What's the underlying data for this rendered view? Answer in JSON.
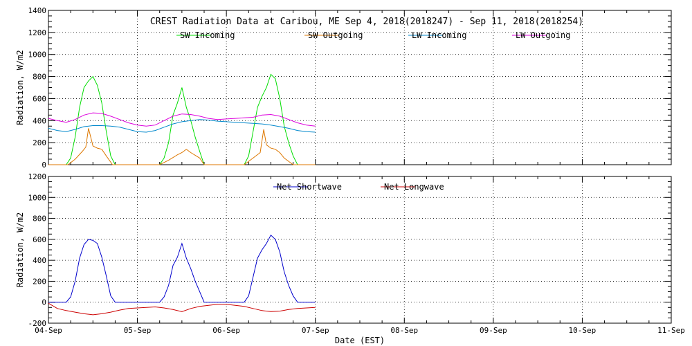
{
  "title": "CREST Radiation Data at Caribou, ME   Sep  4, 2018(2018247) - Sep 11, 2018(2018254)",
  "xlabel": "Date (EST)",
  "x_ticks": [
    "04-Sep",
    "05-Sep",
    "06-Sep",
    "07-Sep",
    "08-Sep",
    "09-Sep",
    "10-Sep",
    "11-Sep"
  ],
  "colors": {
    "sw_in": "#00dd00",
    "sw_out": "#dd7700",
    "lw_in": "#0088cc",
    "lw_out": "#dd00dd",
    "net_sw": "#0000cc",
    "net_lw": "#cc0000"
  },
  "chart_data": [
    {
      "type": "line",
      "ylabel": "Radiation, W/m2",
      "ylim": [
        0,
        1400
      ],
      "y_ticks": [
        0,
        200,
        400,
        600,
        800,
        1000,
        1200,
        1400
      ],
      "xlim": [
        0,
        7
      ],
      "x_unit": "days since 04-Sep 00:00 EST",
      "grid": true,
      "legend": "top",
      "series": [
        {
          "name": "SW Incoming",
          "color_key": "sw_in",
          "x": [
            0,
            0.2,
            0.25,
            0.3,
            0.35,
            0.4,
            0.45,
            0.5,
            0.55,
            0.6,
            0.65,
            0.7,
            0.75,
            1.25,
            1.3,
            1.35,
            1.4,
            1.45,
            1.5,
            1.55,
            1.6,
            1.65,
            1.7,
            1.75,
            2.2,
            2.25,
            2.3,
            2.35,
            2.4,
            2.45,
            2.5,
            2.55,
            2.6,
            2.65,
            2.7,
            2.75,
            2.8,
            3.0
          ],
          "values": [
            0,
            0,
            60,
            250,
            520,
            700,
            760,
            800,
            720,
            560,
            300,
            80,
            0,
            0,
            60,
            200,
            450,
            560,
            700,
            520,
            400,
            250,
            120,
            0,
            0,
            80,
            300,
            520,
            620,
            700,
            820,
            780,
            600,
            350,
            200,
            80,
            0,
            0
          ]
        },
        {
          "name": "SW Outgoing",
          "color_key": "sw_out",
          "x": [
            0,
            0.22,
            0.3,
            0.38,
            0.42,
            0.45,
            0.5,
            0.55,
            0.6,
            0.65,
            0.72,
            1.25,
            1.35,
            1.45,
            1.5,
            1.55,
            1.6,
            1.7,
            1.75,
            2.2,
            2.3,
            2.38,
            2.42,
            2.45,
            2.5,
            2.55,
            2.6,
            2.65,
            2.75,
            3.0
          ],
          "values": [
            0,
            0,
            50,
            120,
            160,
            330,
            170,
            150,
            140,
            80,
            0,
            0,
            40,
            90,
            110,
            140,
            110,
            60,
            0,
            0,
            60,
            110,
            320,
            180,
            150,
            140,
            110,
            60,
            0,
            0
          ]
        },
        {
          "name": "LW Incoming",
          "color_key": "lw_in",
          "x": [
            0,
            0.1,
            0.2,
            0.3,
            0.4,
            0.5,
            0.6,
            0.7,
            0.8,
            0.9,
            1.0,
            1.1,
            1.2,
            1.3,
            1.4,
            1.5,
            1.6,
            1.7,
            1.8,
            1.9,
            2.0,
            2.1,
            2.2,
            2.3,
            2.4,
            2.5,
            2.6,
            2.7,
            2.8,
            2.9,
            3.0
          ],
          "values": [
            330,
            310,
            300,
            320,
            345,
            355,
            355,
            350,
            340,
            320,
            300,
            295,
            310,
            340,
            370,
            390,
            400,
            410,
            405,
            395,
            390,
            385,
            380,
            375,
            370,
            360,
            345,
            330,
            310,
            300,
            295
          ]
        },
        {
          "name": "LW Outgoing",
          "color_key": "lw_out",
          "x": [
            0,
            0.1,
            0.2,
            0.3,
            0.4,
            0.5,
            0.6,
            0.7,
            0.8,
            0.9,
            1.0,
            1.1,
            1.2,
            1.3,
            1.4,
            1.5,
            1.6,
            1.7,
            1.8,
            1.9,
            2.0,
            2.1,
            2.2,
            2.3,
            2.4,
            2.5,
            2.6,
            2.7,
            2.8,
            2.9,
            3.0
          ],
          "values": [
            420,
            400,
            385,
            410,
            450,
            470,
            465,
            440,
            410,
            380,
            360,
            350,
            360,
            400,
            440,
            460,
            455,
            440,
            420,
            410,
            415,
            420,
            425,
            430,
            450,
            455,
            440,
            410,
            380,
            360,
            350
          ]
        }
      ]
    },
    {
      "type": "line",
      "ylabel": "Radiation, W/m2",
      "ylim": [
        -200,
        1200
      ],
      "y_ticks": [
        -200,
        0,
        200,
        400,
        600,
        800,
        1000,
        1200
      ],
      "xlim": [
        0,
        7
      ],
      "x_unit": "days since 04-Sep 00:00 EST",
      "grid": true,
      "legend": "top",
      "series": [
        {
          "name": "Net Shortwave",
          "color_key": "net_sw",
          "x": [
            0,
            0.2,
            0.25,
            0.3,
            0.35,
            0.4,
            0.45,
            0.5,
            0.55,
            0.6,
            0.65,
            0.7,
            0.75,
            1.25,
            1.3,
            1.35,
            1.4,
            1.45,
            1.5,
            1.55,
            1.6,
            1.65,
            1.7,
            1.75,
            2.2,
            2.25,
            2.3,
            2.35,
            2.4,
            2.45,
            2.5,
            2.55,
            2.6,
            2.65,
            2.7,
            2.75,
            2.8,
            3.0
          ],
          "values": [
            0,
            0,
            50,
            200,
            420,
            550,
            600,
            590,
            560,
            430,
            250,
            60,
            0,
            0,
            50,
            160,
            350,
            430,
            560,
            420,
            320,
            200,
            100,
            0,
            0,
            60,
            240,
            420,
            500,
            560,
            640,
            600,
            480,
            290,
            160,
            60,
            0,
            0
          ]
        },
        {
          "name": "Net Longwave",
          "color_key": "net_lw",
          "x": [
            0,
            0.1,
            0.2,
            0.3,
            0.4,
            0.5,
            0.6,
            0.7,
            0.8,
            0.9,
            1.0,
            1.1,
            1.2,
            1.3,
            1.4,
            1.5,
            1.6,
            1.7,
            1.8,
            1.9,
            2.0,
            2.1,
            2.2,
            2.3,
            2.4,
            2.5,
            2.6,
            2.7,
            2.8,
            2.9,
            3.0
          ],
          "values": [
            -10,
            -60,
            -80,
            -95,
            -110,
            -120,
            -110,
            -95,
            -75,
            -60,
            -55,
            -50,
            -45,
            -55,
            -70,
            -90,
            -60,
            -40,
            -30,
            -20,
            -20,
            -30,
            -40,
            -60,
            -80,
            -90,
            -85,
            -70,
            -60,
            -55,
            -50
          ]
        }
      ]
    }
  ]
}
